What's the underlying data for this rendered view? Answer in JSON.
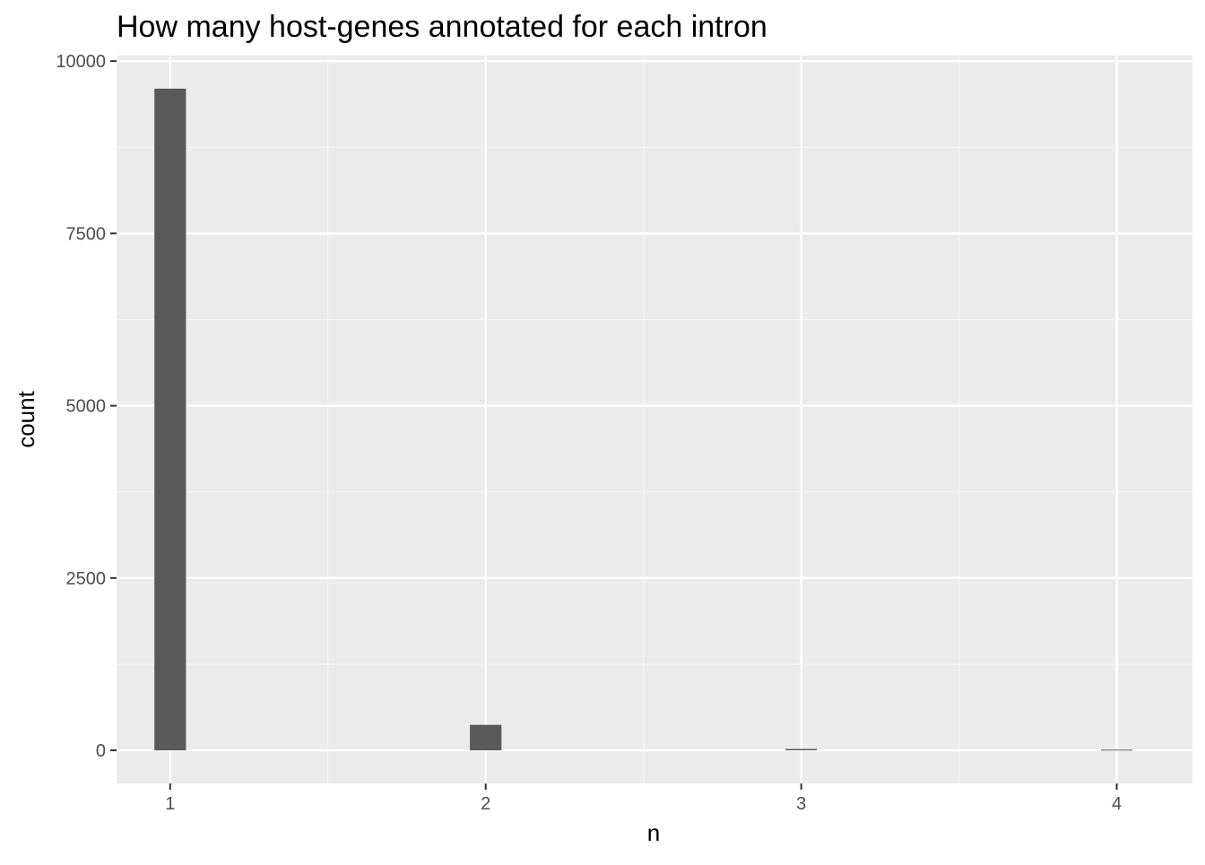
{
  "chart_data": {
    "type": "bar",
    "title": "How many host-genes annotated for each intron",
    "xlabel": "n",
    "ylabel": "count",
    "x_ticks": [
      "1",
      "2",
      "3",
      "4"
    ],
    "y_ticks": [
      "0",
      "2500",
      "5000",
      "7500",
      "10000"
    ],
    "xlim": [
      0.83,
      4.24
    ],
    "ylim": [
      -480,
      10080
    ],
    "bars": [
      {
        "x": 1,
        "value": 9600
      },
      {
        "x": 2,
        "value": 370
      },
      {
        "x": 3,
        "value": 20
      },
      {
        "x": 4,
        "value": 10
      }
    ],
    "bin_width": 0.1,
    "grid": true,
    "colors": {
      "panel_background": "#ebebeb",
      "grid_major": "#ffffff",
      "grid_minor": "#f5f5f5",
      "bar_fill": "#595959"
    }
  }
}
